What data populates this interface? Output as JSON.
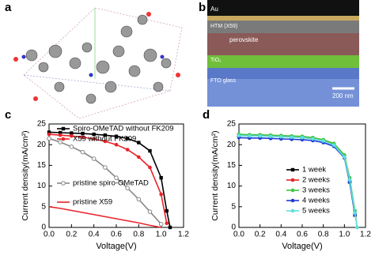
{
  "panel_labels": [
    "a",
    "b",
    "c",
    "d"
  ],
  "sem_labels": [
    "Au",
    "HTM (X59)",
    "perovskite",
    "TiO₂",
    "FTO glass"
  ],
  "scale_bar": "200 nm",
  "chart_data": [
    {
      "type": "line",
      "xlabel": "Voltage(V)",
      "ylabel": "Current density(mA/cm²)",
      "x": [
        0,
        0.1,
        0.2,
        0.3,
        0.4,
        0.5,
        0.6,
        0.7,
        0.8,
        0.9,
        1.0,
        1.05,
        1.08
      ],
      "xlim": [
        0,
        1.2
      ],
      "ylim": [
        0,
        25
      ],
      "xticks": [
        {
          "value": 0,
          "label": "0.0"
        },
        0.2,
        0.4,
        0.6,
        0.8,
        {
          "value": 1,
          "label": "1.0"
        },
        1.2
      ],
      "yticks": [
        0,
        5,
        10,
        15,
        20,
        25
      ],
      "series": [
        {
          "name": "Spiro-OMeTAD without FK209",
          "color": "#000000",
          "marker": "square",
          "values": [
            23,
            22.9,
            22.8,
            22.7,
            22.5,
            22.3,
            22,
            21.5,
            20.5,
            18.5,
            12,
            4,
            0
          ]
        },
        {
          "name": "X59 without FK209",
          "color": "#e8232a",
          "marker": "circle",
          "values": [
            22.5,
            22.3,
            22.1,
            21.8,
            21.4,
            20.8,
            20,
            18.8,
            17,
            14.5,
            8,
            1,
            null
          ]
        },
        {
          "name": "pristine spiro-OMeTAD",
          "color": "#888888",
          "marker": "open-circle",
          "values": [
            21.5,
            20.6,
            19.5,
            18.2,
            16.6,
            14.5,
            12,
            9.5,
            6.8,
            3.8,
            0.8,
            null,
            null
          ]
        },
        {
          "name": "pristine X59",
          "color": "#e8232a",
          "marker": "none",
          "values": [
            5,
            4.6,
            4.1,
            3.6,
            3.1,
            2.6,
            2.1,
            1.6,
            1.1,
            0.5,
            0,
            null,
            null
          ]
        }
      ]
    },
    {
      "type": "line",
      "xlabel": "Voltage(V)",
      "ylabel": "Current density(mA/cm²)",
      "x": [
        0,
        0.1,
        0.2,
        0.3,
        0.4,
        0.5,
        0.6,
        0.7,
        0.8,
        0.9,
        1.0,
        1.05,
        1.1,
        1.12
      ],
      "xlim": [
        0,
        1.2
      ],
      "ylim": [
        0,
        25
      ],
      "xticks": [
        {
          "value": 0,
          "label": "0.0"
        },
        0.2,
        0.4,
        0.6,
        0.8,
        {
          "value": 1,
          "label": "1.0"
        },
        1.2
      ],
      "yticks": [
        0,
        5,
        10,
        15,
        20,
        25
      ],
      "series": [
        {
          "name": "1 week",
          "color": "#000000",
          "marker": "square",
          "values": [
            22.3,
            22.2,
            22.2,
            22.1,
            22,
            21.9,
            21.8,
            21.5,
            21,
            20,
            17,
            11,
            3,
            null
          ]
        },
        {
          "name": "2 weeks",
          "color": "#e8232a",
          "marker": "circle",
          "values": [
            22.4,
            22.3,
            22.3,
            22.2,
            22.1,
            22,
            21.9,
            21.6,
            21.1,
            20.2,
            17.3,
            11.5,
            3.5,
            null
          ]
        },
        {
          "name": "3 weeks",
          "color": "#3ec63e",
          "marker": "circle",
          "values": [
            22.5,
            22.4,
            22.4,
            22.3,
            22.2,
            22.1,
            22,
            21.7,
            21.2,
            20.3,
            17.5,
            12,
            4,
            0
          ]
        },
        {
          "name": "4 weeks",
          "color": "#1f3bd6",
          "marker": "circle",
          "values": [
            21.7,
            21.6,
            21.6,
            21.5,
            21.4,
            21.3,
            21.2,
            21,
            20.5,
            19.6,
            16.8,
            11,
            3,
            null
          ]
        },
        {
          "name": "5 weeks",
          "color": "#5fe0e0",
          "marker": "circle",
          "values": [
            22.2,
            22.1,
            22.1,
            22,
            21.9,
            21.8,
            21.7,
            21.4,
            20.9,
            19.9,
            17,
            11.5,
            3.5,
            0
          ]
        }
      ]
    }
  ]
}
